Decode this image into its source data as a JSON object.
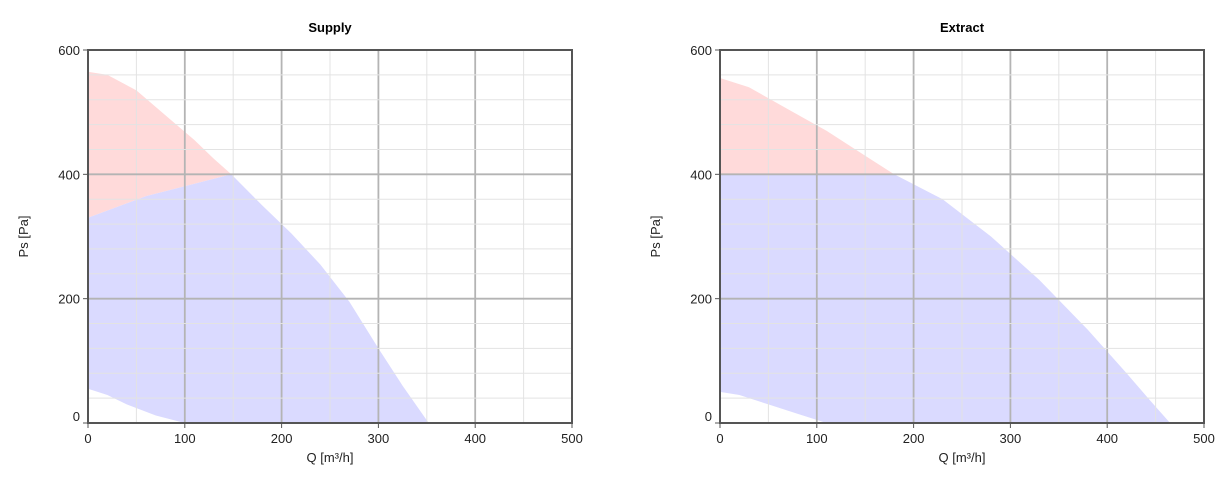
{
  "chart_data": [
    {
      "type": "area",
      "title": "Supply",
      "xlabel": "Q [m³/h]",
      "ylabel": "Ps [Pa]",
      "xlim": [
        0,
        500
      ],
      "ylim": [
        0,
        600
      ],
      "x_ticks": [
        "0",
        "100",
        "200",
        "300",
        "400",
        "500"
      ],
      "y_ticks": [
        "0",
        "200",
        "400",
        "600"
      ],
      "grid": true,
      "series": [
        {
          "color": "#ffdada",
          "points": [
            [
              0,
              565
            ],
            [
              20,
              560
            ],
            [
              50,
              535
            ],
            [
              80,
              495
            ],
            [
              110,
              455
            ],
            [
              130,
              425
            ],
            [
              148,
              400
            ],
            [
              110,
              385
            ],
            [
              60,
              365
            ],
            [
              0,
              330
            ]
          ]
        },
        {
          "color": "#dadaff",
          "points": [
            [
              0,
              330
            ],
            [
              60,
              365
            ],
            [
              110,
              385
            ],
            [
              148,
              400
            ],
            [
              180,
              350
            ],
            [
              210,
              305
            ],
            [
              240,
              255
            ],
            [
              270,
              195
            ],
            [
              300,
              120
            ],
            [
              325,
              60
            ],
            [
              352,
              0
            ],
            [
              100,
              0
            ],
            [
              70,
              12
            ],
            [
              40,
              30
            ],
            [
              20,
              45
            ],
            [
              0,
              55
            ]
          ]
        }
      ]
    },
    {
      "type": "area",
      "title": "Extract",
      "xlabel": "Q [m³/h]",
      "ylabel": "Ps [Pa]",
      "xlim": [
        0,
        500
      ],
      "ylim": [
        0,
        600
      ],
      "x_ticks": [
        "0",
        "100",
        "200",
        "300",
        "400",
        "500"
      ],
      "y_ticks": [
        "0",
        "200",
        "400",
        "600"
      ],
      "grid": true,
      "series": [
        {
          "color": "#ffdada",
          "points": [
            [
              0,
              555
            ],
            [
              30,
              540
            ],
            [
              70,
              505
            ],
            [
              110,
              470
            ],
            [
              150,
              430
            ],
            [
              180,
              400
            ],
            [
              0,
              400
            ]
          ]
        },
        {
          "color": "#dadaff",
          "points": [
            [
              0,
              400
            ],
            [
              180,
              400
            ],
            [
              230,
              360
            ],
            [
              280,
              300
            ],
            [
              330,
              230
            ],
            [
              380,
              150
            ],
            [
              420,
              80
            ],
            [
              445,
              35
            ],
            [
              465,
              0
            ],
            [
              110,
              0
            ],
            [
              80,
              15
            ],
            [
              50,
              30
            ],
            [
              20,
              45
            ],
            [
              0,
              50
            ]
          ]
        }
      ]
    }
  ]
}
